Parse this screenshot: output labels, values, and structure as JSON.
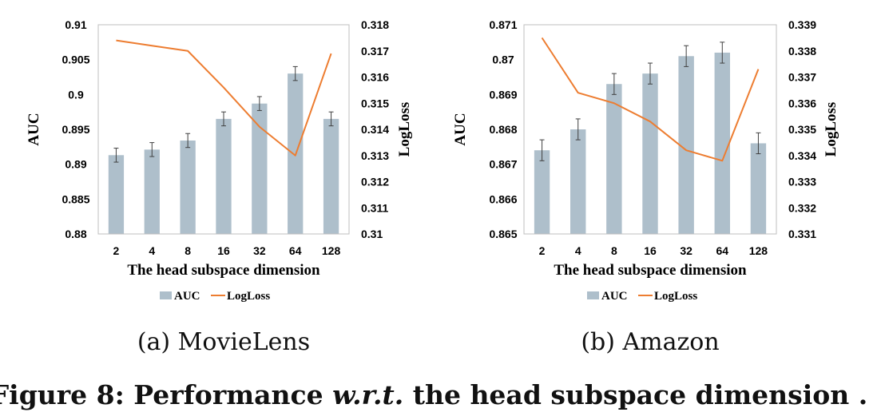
{
  "chart_data": [
    {
      "type": "bar",
      "caption": "(a)  MovieLens",
      "categories": [
        "2",
        "4",
        "8",
        "16",
        "32",
        "64",
        "128"
      ],
      "xlabel": "The head subspace dimension",
      "ylabel": "AUC",
      "y2label": "LogLoss",
      "ylim": [
        0.88,
        0.91
      ],
      "yticks": [
        "0.88",
        "0.885",
        "0.89",
        "0.895",
        "0.9",
        "0.905",
        "0.91"
      ],
      "y2lim": [
        0.31,
        0.318
      ],
      "y2ticks": [
        "0.31",
        "0.311",
        "0.312",
        "0.313",
        "0.314",
        "0.315",
        "0.316",
        "0.317",
        "0.318"
      ],
      "series": [
        {
          "name": "AUC",
          "type": "bar",
          "axis": "left",
          "values": [
            0.8913,
            0.8921,
            0.8934,
            0.8965,
            0.8987,
            0.903,
            0.8965
          ],
          "errors": [
            0.001,
            0.001,
            0.001,
            0.001,
            0.001,
            0.001,
            0.001
          ]
        },
        {
          "name": "LogLoss",
          "type": "line",
          "axis": "right",
          "values": [
            0.3174,
            0.3172,
            0.317,
            0.3156,
            0.3141,
            0.313,
            0.3169
          ]
        }
      ],
      "legend": "bottom",
      "grid": false
    },
    {
      "type": "bar",
      "caption": "(b)  Amazon",
      "categories": [
        "2",
        "4",
        "8",
        "16",
        "32",
        "64",
        "128"
      ],
      "xlabel": "The head subspace dimension",
      "ylabel": "AUC",
      "y2label": "LogLoss",
      "ylim": [
        0.865,
        0.871
      ],
      "yticks": [
        "0.865",
        "0.866",
        "0.867",
        "0.868",
        "0.869",
        "0.87",
        "0.871"
      ],
      "y2lim": [
        0.331,
        0.339
      ],
      "y2ticks": [
        "0.331",
        "0.332",
        "0.333",
        "0.334",
        "0.335",
        "0.336",
        "0.337",
        "0.338",
        "0.339"
      ],
      "series": [
        {
          "name": "AUC",
          "type": "bar",
          "axis": "left",
          "values": [
            0.8674,
            0.868,
            0.8693,
            0.8696,
            0.8701,
            0.8702,
            0.8676
          ],
          "errors": [
            0.0003,
            0.0003,
            0.0003,
            0.0003,
            0.0003,
            0.0003,
            0.0003
          ]
        },
        {
          "name": "LogLoss",
          "type": "line",
          "axis": "right",
          "values": [
            0.3385,
            0.3364,
            0.336,
            0.3353,
            0.3342,
            0.3338,
            0.3373
          ]
        }
      ],
      "legend": "bottom",
      "grid": false
    }
  ],
  "figure": {
    "label": "Figure 8:",
    "text_a": "Performance ",
    "text_b": "w.r.t.",
    "text_c": " the head subspace dimension ."
  },
  "colors": {
    "bar": "#aebfcb",
    "line": "#ed7d31",
    "axis": "#bfbfbf",
    "errorbar": "#404040"
  }
}
